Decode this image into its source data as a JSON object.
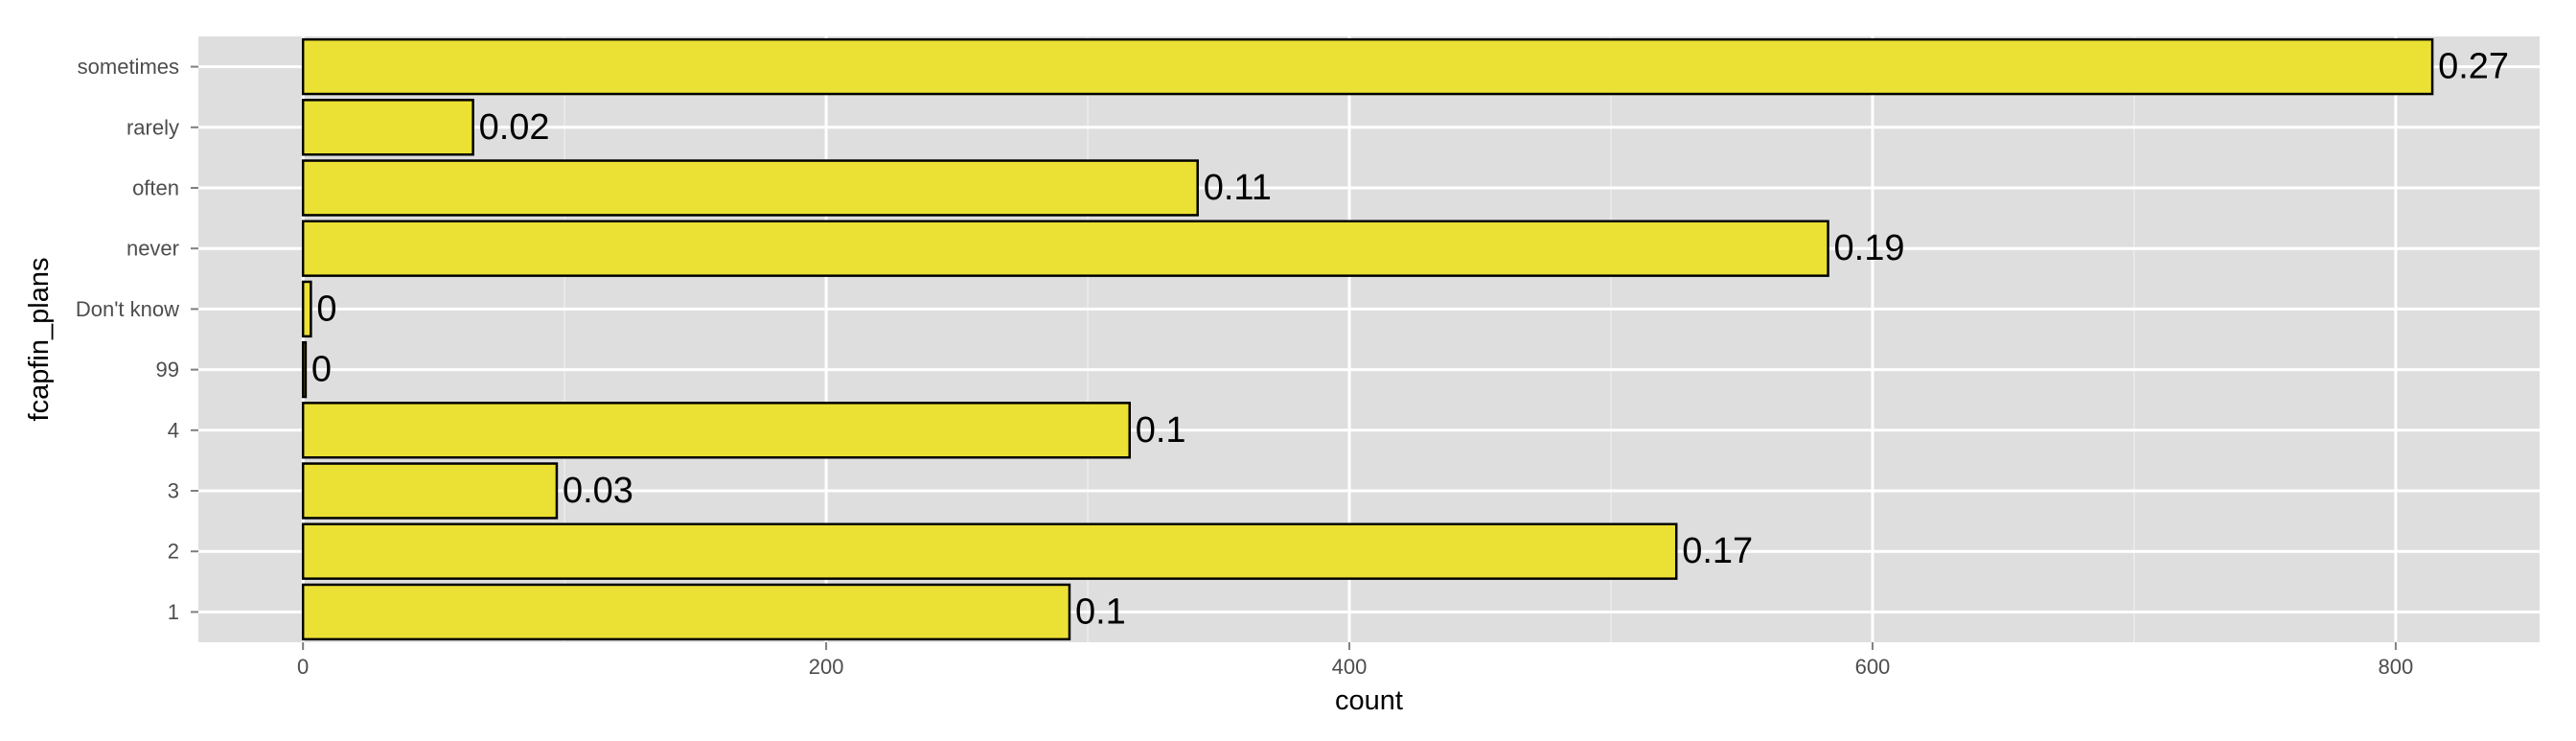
{
  "chart_data": {
    "type": "bar",
    "orientation": "horizontal",
    "categories": [
      "1",
      "2",
      "3",
      "4",
      "99",
      "Don't know",
      "never",
      "often",
      "rarely",
      "sometimes"
    ],
    "values": [
      293,
      525,
      97,
      316,
      1,
      3,
      583,
      342,
      65,
      814
    ],
    "data_labels": [
      "0.1",
      "0.17",
      "0.03",
      "0.1",
      "0",
      "0",
      "0.19",
      "0.11",
      "0.02",
      "0.27"
    ],
    "xlabel": "count",
    "ylabel": "fcapfin_plans",
    "xlim": [
      -40,
      855
    ],
    "xticks": [
      0,
      200,
      400,
      600,
      800
    ],
    "grid": true,
    "colors": {
      "bar_fill": "#ebe134",
      "bar_stroke": "#000000",
      "panel_background": "#dedede",
      "grid_major": "#ffffff",
      "grid_minor": "#ececec",
      "axis_text": "#4d4d4d"
    }
  }
}
